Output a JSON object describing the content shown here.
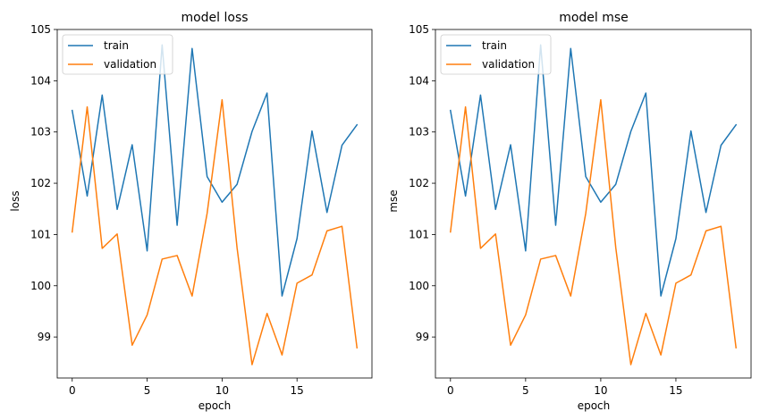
{
  "chart_data": [
    {
      "type": "line",
      "title": "model loss",
      "xlabel": "epoch",
      "ylabel": "loss",
      "xlim": [
        -1.0,
        20.0
      ],
      "ylim": [
        98.2,
        105.0
      ],
      "xticks": [
        0,
        5,
        10,
        15
      ],
      "yticks": [
        99,
        100,
        101,
        102,
        103,
        104,
        105
      ],
      "legend_position": "top-left",
      "x": [
        0,
        1,
        2,
        3,
        4,
        5,
        6,
        7,
        8,
        9,
        10,
        11,
        12,
        13,
        14,
        15,
        16,
        17,
        18,
        19
      ],
      "series": [
        {
          "name": "train",
          "color": "#1f77b4",
          "values": [
            103.42,
            101.75,
            103.72,
            101.49,
            102.75,
            100.68,
            104.7,
            101.18,
            104.63,
            102.13,
            101.63,
            101.98,
            103.01,
            103.76,
            99.8,
            100.92,
            103.02,
            101.43,
            102.74,
            103.14
          ]
        },
        {
          "name": "validation",
          "color": "#ff7f0e",
          "values": [
            101.05,
            103.49,
            100.73,
            101.01,
            98.84,
            99.43,
            100.52,
            100.59,
            99.8,
            101.41,
            103.63,
            100.74,
            98.46,
            99.46,
            98.65,
            100.05,
            100.21,
            101.07,
            101.16,
            98.79
          ]
        }
      ]
    },
    {
      "type": "line",
      "title": "model mse",
      "xlabel": "epoch",
      "ylabel": "mse",
      "xlim": [
        -1.0,
        20.0
      ],
      "ylim": [
        98.2,
        105.0
      ],
      "xticks": [
        0,
        5,
        10,
        15
      ],
      "yticks": [
        99,
        100,
        101,
        102,
        103,
        104,
        105
      ],
      "legend_position": "top-left",
      "x": [
        0,
        1,
        2,
        3,
        4,
        5,
        6,
        7,
        8,
        9,
        10,
        11,
        12,
        13,
        14,
        15,
        16,
        17,
        18,
        19
      ],
      "series": [
        {
          "name": "train",
          "color": "#1f77b4",
          "values": [
            103.42,
            101.75,
            103.72,
            101.49,
            102.75,
            100.68,
            104.7,
            101.18,
            104.63,
            102.13,
            101.63,
            101.98,
            103.01,
            103.76,
            99.8,
            100.92,
            103.02,
            101.43,
            102.74,
            103.14
          ]
        },
        {
          "name": "validation",
          "color": "#ff7f0e",
          "values": [
            101.05,
            103.49,
            100.73,
            101.01,
            98.84,
            99.43,
            100.52,
            100.59,
            99.8,
            101.41,
            103.63,
            100.74,
            98.46,
            99.46,
            98.65,
            100.05,
            100.21,
            101.07,
            101.16,
            98.79
          ]
        }
      ]
    }
  ]
}
